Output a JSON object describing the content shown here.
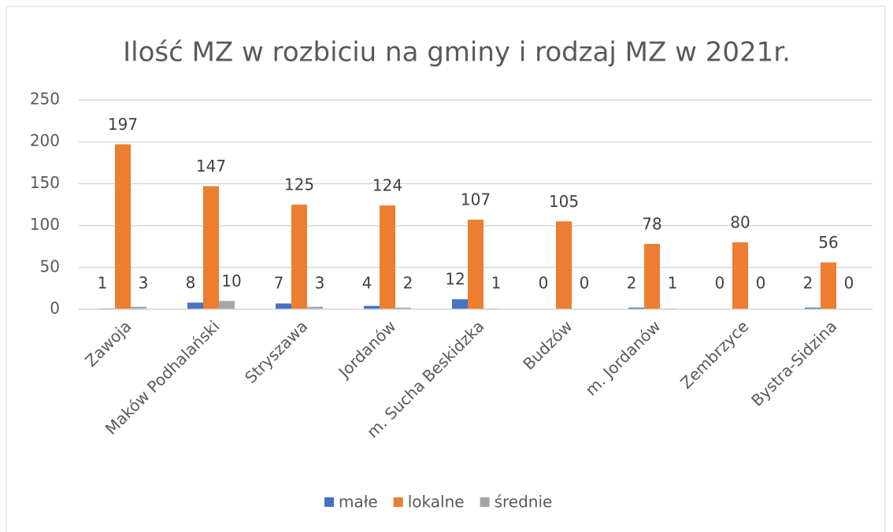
{
  "chart_data": {
    "type": "bar",
    "title": "Ilość MZ w rozbiciu na gminy i rodzaj MZ w 2021r.",
    "categories": [
      "Zawoja",
      "Maków Podhalański",
      "Stryszawa",
      "Jordanów",
      "m. Sucha Beskidzka",
      "Budzów",
      "m. Jordanów",
      "Zembrzyce",
      "Bystra-Sidzina"
    ],
    "series": [
      {
        "name": "małe",
        "color": "#4472c4",
        "values": [
          1,
          8,
          7,
          4,
          12,
          0,
          2,
          0,
          2
        ]
      },
      {
        "name": "lokalne",
        "color": "#ed7d31",
        "values": [
          197,
          147,
          125,
          124,
          107,
          105,
          78,
          80,
          56
        ]
      },
      {
        "name": "średnie",
        "color": "#a5a5a5",
        "values": [
          3,
          10,
          3,
          2,
          1,
          0,
          1,
          0,
          0
        ]
      }
    ],
    "ylim": [
      0,
      250
    ],
    "yticks": [
      0,
      50,
      100,
      150,
      200,
      250
    ],
    "grid": true,
    "legend": "bottom"
  }
}
